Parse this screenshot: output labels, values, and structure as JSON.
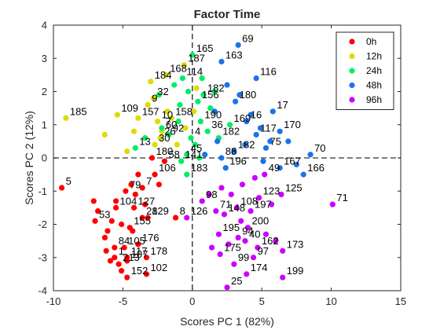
{
  "chart_data": {
    "type": "scatter",
    "title": "Factor Time",
    "xlabel": "Scores PC 1 (82%)",
    "ylabel": "Scores PC 2 (12%)",
    "xlim": [
      -10,
      15
    ],
    "ylim": [
      -4,
      4
    ],
    "xticks": [
      "-10",
      "-5",
      "0",
      "5",
      "10",
      "15"
    ],
    "yticks": [
      "-4",
      "-3",
      "-2",
      "-1",
      "0",
      "1",
      "2",
      "3",
      "4"
    ],
    "grid": false,
    "reference_lines": "dashed lines at x=0 and y=0",
    "legend_position": "top-right",
    "series": [
      {
        "name": "0h",
        "color": "#ff0000",
        "points": [
          {
            "x": -9.4,
            "y": -0.9,
            "label": "5"
          },
          {
            "x": -7.0,
            "y": -1.9,
            "label": "53"
          },
          {
            "x": -5.5,
            "y": -1.5,
            "label": "104"
          },
          {
            "x": -4.8,
            "y": -1.0,
            "label": "79"
          },
          {
            "x": -4.2,
            "y": -1.5,
            "label": "127"
          },
          {
            "x": -3.6,
            "y": -1.8,
            "label": "28"
          },
          {
            "x": -3.2,
            "y": -1.8,
            "label": "129"
          },
          {
            "x": -3.6,
            "y": -0.9,
            "label": "7"
          },
          {
            "x": -4.5,
            "y": -2.1,
            "label": "155"
          },
          {
            "x": -3.9,
            "y": -2.6,
            "label": "176"
          },
          {
            "x": -4.9,
            "y": -2.7,
            "label": "105"
          },
          {
            "x": -4.7,
            "y": -3.0,
            "label": "117"
          },
          {
            "x": -5.6,
            "y": -3.0,
            "label": "1"
          },
          {
            "x": -5.3,
            "y": -3.2,
            "label": "213"
          },
          {
            "x": -4.7,
            "y": -3.1,
            "label": "107"
          },
          {
            "x": -3.3,
            "y": -3.0,
            "label": "178"
          },
          {
            "x": -3.3,
            "y": -3.5,
            "label": "102"
          },
          {
            "x": -4.7,
            "y": -3.6,
            "label": "152"
          },
          {
            "x": -5.6,
            "y": -2.7,
            "label": "84"
          },
          {
            "x": -2.7,
            "y": -0.5,
            "label": "106"
          },
          {
            "x": -2.9,
            "y": 0.0,
            "label": "180"
          },
          {
            "x": -2.0,
            "y": -0.1,
            "label": "58"
          },
          {
            "x": -1.2,
            "y": -1.8,
            "label": "8"
          },
          {
            "x": -7.1,
            "y": -1.3
          },
          {
            "x": -6.8,
            "y": -1.6
          },
          {
            "x": -6.3,
            "y": -2.4
          },
          {
            "x": -6.1,
            "y": -2.2
          },
          {
            "x": -5.8,
            "y": -1.9
          },
          {
            "x": -5.5,
            "y": -1.3
          },
          {
            "x": -5.1,
            "y": -2.0
          },
          {
            "x": -4.4,
            "y": -0.8
          },
          {
            "x": -4.1,
            "y": -1.1
          },
          {
            "x": -3.9,
            "y": -0.5
          },
          {
            "x": -6.2,
            "y": -2.8
          },
          {
            "x": -5.9,
            "y": -3.1
          },
          {
            "x": -5.1,
            "y": -3.4
          },
          {
            "x": -4.3,
            "y": -2.2
          },
          {
            "x": -3.4,
            "y": -1.4
          },
          {
            "x": -2.4,
            "y": -0.8
          }
        ]
      },
      {
        "name": "12h",
        "color": "#dddd00",
        "points": [
          {
            "x": -9.1,
            "y": 1.2,
            "label": "185"
          },
          {
            "x": -6.3,
            "y": 0.7
          },
          {
            "x": -5.4,
            "y": 1.3,
            "label": "109"
          },
          {
            "x": -4.7,
            "y": 0.2
          },
          {
            "x": -4.2,
            "y": 0.8
          },
          {
            "x": -3.9,
            "y": 1.2,
            "label": "157"
          },
          {
            "x": -3.2,
            "y": 1.6,
            "label": "9"
          },
          {
            "x": -3.0,
            "y": 2.3,
            "label": "184"
          },
          {
            "x": -2.8,
            "y": 1.8,
            "label": "32"
          },
          {
            "x": -2.5,
            "y": 1.1,
            "label": "10"
          },
          {
            "x": -2.2,
            "y": 0.8,
            "label": "60"
          },
          {
            "x": -2.3,
            "y": 0.6,
            "label": "26"
          },
          {
            "x": -2.7,
            "y": 0.4,
            "label": "30"
          },
          {
            "x": -1.9,
            "y": 2.5,
            "label": "168"
          },
          {
            "x": -1.5,
            "y": 1.2,
            "label": "158"
          },
          {
            "x": -0.6,
            "y": 2.8,
            "label": "187"
          },
          {
            "x": -1.1,
            "y": 0.4
          },
          {
            "x": -0.5,
            "y": 0.9
          },
          {
            "x": 0.1,
            "y": 1.4
          },
          {
            "x": 0.3,
            "y": 2.1
          },
          {
            "x": -1.8,
            "y": 1.4
          }
        ]
      },
      {
        "name": "24h",
        "color": "#00ee66",
        "points": [
          {
            "x": 0.0,
            "y": 3.1,
            "label": "165"
          },
          {
            "x": -0.7,
            "y": 2.4,
            "label": "114"
          },
          {
            "x": -4.1,
            "y": 0.3,
            "label": "13"
          },
          {
            "x": -2.2,
            "y": 0.9,
            "label": "7"
          },
          {
            "x": -1.7,
            "y": 0.7,
            "label": "92"
          },
          {
            "x": -0.1,
            "y": 0.6,
            "label": "4"
          },
          {
            "x": -0.4,
            "y": 0.1,
            "label": "45"
          },
          {
            "x": -0.8,
            "y": -0.1,
            "label": "141"
          },
          {
            "x": 0.4,
            "y": 1.7,
            "label": "156"
          },
          {
            "x": 0.6,
            "y": 1.1,
            "label": "190"
          },
          {
            "x": 0.8,
            "y": 1.9,
            "label": "182"
          },
          {
            "x": 1.1,
            "y": 0.8,
            "label": "36"
          },
          {
            "x": 1.9,
            "y": 0.6,
            "label": "182"
          },
          {
            "x": 2.7,
            "y": 1.0,
            "label": "169"
          },
          {
            "x": -0.4,
            "y": -0.5,
            "label": "183"
          },
          {
            "x": -2.4,
            "y": 1.9
          },
          {
            "x": -1.3,
            "y": 2.2
          },
          {
            "x": -0.9,
            "y": 1.6
          },
          {
            "x": -0.3,
            "y": 2.0
          },
          {
            "x": 0.2,
            "y": 0.4
          },
          {
            "x": 0.7,
            "y": 2.4
          },
          {
            "x": 1.3,
            "y": 1.5
          },
          {
            "x": -1.0,
            "y": 1.1
          },
          {
            "x": 1.6,
            "y": 2.0
          },
          {
            "x": -3.4,
            "y": 0.6
          },
          {
            "x": 0.5,
            "y": 0.0
          }
        ]
      },
      {
        "name": "48h",
        "color": "#1a73e8",
        "points": [
          {
            "x": 3.3,
            "y": 3.4,
            "label": "69"
          },
          {
            "x": 2.1,
            "y": 2.9,
            "label": "163"
          },
          {
            "x": 4.6,
            "y": 2.4,
            "label": "116"
          },
          {
            "x": 3.1,
            "y": 1.7,
            "label": "180"
          },
          {
            "x": 5.8,
            "y": 1.4,
            "label": "17"
          },
          {
            "x": 3.9,
            "y": 1.1,
            "label": "16"
          },
          {
            "x": 4.6,
            "y": 0.7,
            "label": "117"
          },
          {
            "x": 6.3,
            "y": 0.8,
            "label": "170"
          },
          {
            "x": 5.3,
            "y": 0.3,
            "label": "75"
          },
          {
            "x": 8.5,
            "y": 0.1,
            "label": "70"
          },
          {
            "x": 2.1,
            "y": 0.0,
            "label": "88"
          },
          {
            "x": 3.0,
            "y": 0.2,
            "label": "182"
          },
          {
            "x": 2.4,
            "y": -0.3,
            "label": "196"
          },
          {
            "x": 6.3,
            "y": -0.3,
            "label": "167"
          },
          {
            "x": 8.0,
            "y": -0.5,
            "label": "166"
          },
          {
            "x": 1.6,
            "y": 1.4
          },
          {
            "x": 2.5,
            "y": 2.2
          },
          {
            "x": 3.4,
            "y": 1.9
          },
          {
            "x": 4.2,
            "y": 1.3
          },
          {
            "x": 4.9,
            "y": 0.9
          },
          {
            "x": 5.6,
            "y": 0.5
          },
          {
            "x": 6.9,
            "y": 0.5
          },
          {
            "x": 7.5,
            "y": -0.2
          },
          {
            "x": 5.1,
            "y": -0.1
          },
          {
            "x": 3.8,
            "y": 0.4
          },
          {
            "x": 1.8,
            "y": 0.5
          },
          {
            "x": 0.9,
            "y": 0.1
          }
        ]
      },
      {
        "name": "96h",
        "color": "#cc00ff",
        "points": [
          {
            "x": 10.1,
            "y": -1.4,
            "label": "71"
          },
          {
            "x": 6.4,
            "y": -1.1,
            "label": "125"
          },
          {
            "x": 5.2,
            "y": -0.5,
            "label": "49"
          },
          {
            "x": 4.8,
            "y": -1.2,
            "label": "123"
          },
          {
            "x": 4.2,
            "y": -1.6,
            "label": "197"
          },
          {
            "x": 3.2,
            "y": -1.5,
            "label": "108"
          },
          {
            "x": 4.0,
            "y": -2.1,
            "label": "200"
          },
          {
            "x": 2.3,
            "y": -1.7,
            "label": "148"
          },
          {
            "x": 3.3,
            "y": -2.4,
            "label": "94"
          },
          {
            "x": 3.8,
            "y": -2.5,
            "label": "40"
          },
          {
            "x": 4.7,
            "y": -2.7,
            "label": "162"
          },
          {
            "x": 6.5,
            "y": -2.8,
            "label": "173"
          },
          {
            "x": 4.4,
            "y": -3.0,
            "label": "97"
          },
          {
            "x": 2.0,
            "y": -2.9,
            "label": "175"
          },
          {
            "x": 3.0,
            "y": -3.2,
            "label": "99"
          },
          {
            "x": 3.9,
            "y": -3.5,
            "label": "174"
          },
          {
            "x": 6.5,
            "y": -3.6,
            "label": "199"
          },
          {
            "x": 2.5,
            "y": -3.9,
            "label": "25"
          },
          {
            "x": 0.7,
            "y": -1.3,
            "label": "98"
          },
          {
            "x": -0.4,
            "y": -1.8,
            "label": "126"
          },
          {
            "x": 1.7,
            "y": -1.6,
            "label": "71"
          },
          {
            "x": 1.9,
            "y": -2.3,
            "label": "195"
          },
          {
            "x": 2.1,
            "y": -0.9
          },
          {
            "x": 2.8,
            "y": -1.1
          },
          {
            "x": 3.6,
            "y": -0.8
          },
          {
            "x": 4.5,
            "y": -0.6
          },
          {
            "x": 5.7,
            "y": -1.4
          },
          {
            "x": 1.4,
            "y": -2.7
          },
          {
            "x": 2.6,
            "y": -2.6
          },
          {
            "x": 5.3,
            "y": -2.3
          },
          {
            "x": 6.0,
            "y": -2.5
          },
          {
            "x": 3.5,
            "y": -1.9
          },
          {
            "x": 1.2,
            "y": -1.1
          }
        ]
      }
    ]
  }
}
